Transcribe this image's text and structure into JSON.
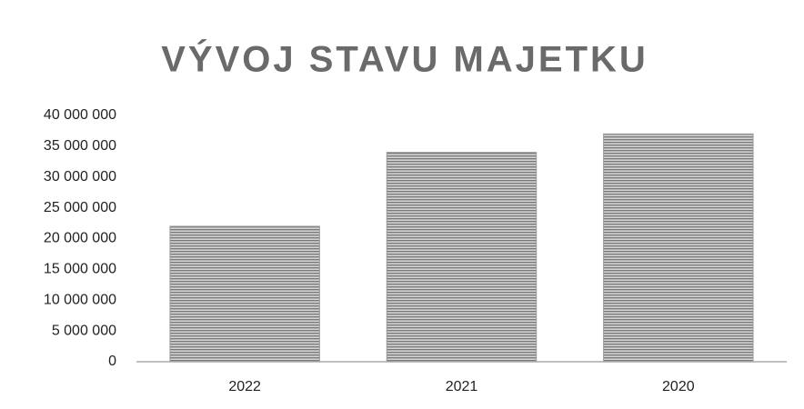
{
  "chart_data": {
    "type": "bar",
    "title": "VÝVOJ STAVU MAJETKU",
    "categories": [
      "2022",
      "2021",
      "2020"
    ],
    "values": [
      22000000,
      34000000,
      37000000
    ],
    "color": "#7a7a7a",
    "ylim": [
      0,
      40000000
    ],
    "yticks": [
      0,
      {
        "value": 5000000,
        "label": "5 000 000"
      },
      {
        "value": 10000000,
        "label": "10 000 000"
      },
      {
        "value": 15000000,
        "label": "15 000 000"
      },
      {
        "value": 20000000,
        "label": "20 000 000"
      },
      {
        "value": 25000000,
        "label": "25 000 000"
      },
      {
        "value": 30000000,
        "label": "30 000 000"
      },
      {
        "value": 35000000,
        "label": "35 000 000"
      },
      {
        "value": 40000000,
        "label": "40 000 000"
      }
    ],
    "grid": false
  }
}
